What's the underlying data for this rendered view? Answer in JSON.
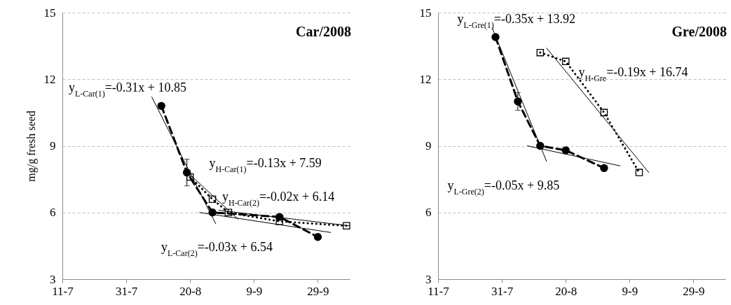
{
  "chart_data": [
    {
      "type": "line",
      "title": "Car/2008",
      "ylabel": "mg/g fresh seed",
      "xlim": [
        "--07-11",
        "--10-09"
      ],
      "xticks": [
        {
          "value": "--07-11",
          "label": "11-7"
        },
        {
          "value": "--07-31",
          "label": "31-7"
        },
        {
          "value": "--08-20",
          "label": "20-8"
        },
        {
          "value": "--09-09",
          "label": "9-9"
        },
        {
          "value": "--09-29",
          "label": "29-9"
        }
      ],
      "ylim": [
        3,
        15
      ],
      "yticks": [
        3,
        6,
        9,
        12,
        15
      ],
      "grid": "y",
      "series": [
        {
          "color": "#000000",
          "line_style": "solid",
          "marker": "none",
          "x": [
            "--08-08",
            "--08-28"
          ],
          "values": [
            11.2,
            5.5
          ]
        },
        {
          "color": "#000000",
          "line_style": "solid",
          "marker": "none",
          "x": [
            "--08-23",
            "--10-03"
          ],
          "values": [
            6.0,
            5.1
          ]
        },
        {
          "color": "#000000",
          "line_style": "solid",
          "marker": "none",
          "x": [
            "--08-20",
            "--09-04"
          ],
          "values": [
            7.7,
            5.7
          ]
        },
        {
          "color": "#000000",
          "line_style": "solid",
          "marker": "none",
          "x": [
            "--08-29",
            "--10-09"
          ],
          "values": [
            6.1,
            5.4
          ]
        },
        {
          "color": "#000000",
          "line_style": "dotted",
          "marker": "square",
          "x": [
            "--08-20",
            "--08-27",
            "--09-01",
            "--09-17",
            "--10-08"
          ],
          "values": [
            7.6,
            6.6,
            6.0,
            5.6,
            5.4
          ]
        },
        {
          "color": "#000000",
          "line_style": "dashed",
          "marker": "circle",
          "x": [
            "--08-11",
            "--08-19",
            "--08-27",
            "--09-17",
            "--09-29"
          ],
          "values": [
            10.8,
            7.8,
            6.0,
            5.8,
            4.9
          ],
          "errors": [
            null,
            [
              7.2,
              8.4
            ],
            null,
            null,
            null
          ]
        }
      ],
      "annotations": [
        "y$_{L-Car(1)}$=-0.31x + 10.85",
        "y$_{H-Car(1)}$=-0.13x + 7.59",
        "y$_{H-Car(2)}$=-0.02x + 6.14",
        "y$_{L-Car(2)}$=-0.03x + 6.54"
      ]
    },
    {
      "type": "line",
      "title": "Gre/2008",
      "xlim": [
        "--07-11",
        "--10-09"
      ],
      "xticks": [
        {
          "value": "--07-11",
          "label": "11-7"
        },
        {
          "value": "--07-31",
          "label": "31-7"
        },
        {
          "value": "--08-20",
          "label": "20-8"
        },
        {
          "value": "--09-09",
          "label": "9-9"
        },
        {
          "value": "--09-29",
          "label": "29-9"
        }
      ],
      "ylim": [
        3,
        15
      ],
      "yticks": [
        3,
        6,
        9,
        12,
        15
      ],
      "grid": "y",
      "series": [
        {
          "color": "#000000",
          "line_style": "solid",
          "marker": "none",
          "x": [
            "--07-28",
            "--08-14"
          ],
          "values": [
            14.3,
            8.3
          ]
        },
        {
          "color": "#000000",
          "line_style": "solid",
          "marker": "none",
          "x": [
            "--08-08",
            "--09-06"
          ],
          "values": [
            9.0,
            8.1
          ]
        },
        {
          "color": "#000000",
          "line_style": "solid",
          "marker": "none",
          "x": [
            "--08-14",
            "--09-15"
          ],
          "values": [
            13.4,
            7.8
          ]
        },
        {
          "color": "#000000",
          "line_style": "dotted",
          "marker": "square",
          "x": [
            "--08-12",
            "--08-20",
            "--09-01",
            "--09-12"
          ],
          "values": [
            13.2,
            12.8,
            10.5,
            7.8
          ]
        },
        {
          "color": "#000000",
          "line_style": "dashed",
          "marker": "circle",
          "x": [
            "--07-29",
            "--08-05",
            "--08-12",
            "--08-20",
            "--09-01"
          ],
          "values": [
            13.9,
            11.0,
            9.0,
            8.8,
            8.0
          ],
          "errors": [
            null,
            [
              10.6,
              11.4
            ],
            null,
            null,
            null
          ]
        }
      ],
      "annotations": [
        "y$_{L-Gre(1)}$=-0.35x + 13.92",
        "y$_{H-Gre}$=-0.19x + 16.74",
        "y$_{L-Gre(2)}$=-0.05x + 9.85"
      ]
    }
  ]
}
